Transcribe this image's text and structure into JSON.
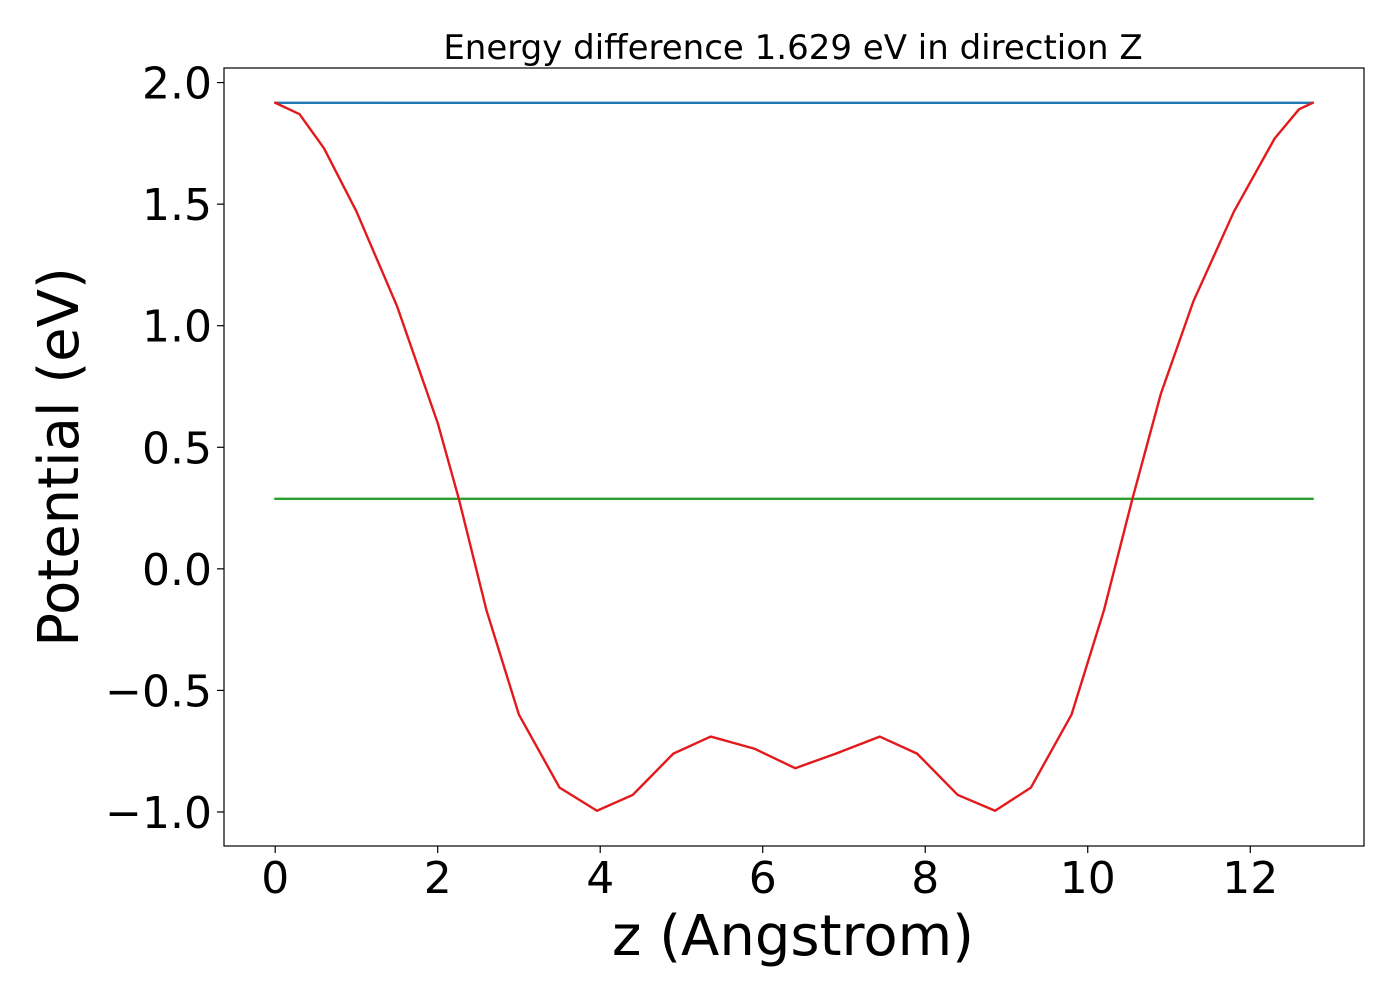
{
  "chart_data": {
    "type": "line",
    "title": "Energy difference 1.629 eV in direction Z",
    "xlabel": "z (Angstrom)",
    "ylabel": "Potential (eV)",
    "xlim": [
      -0.63,
      13.4
    ],
    "ylim": [
      -1.14,
      2.06
    ],
    "xticks": [
      0,
      2,
      4,
      6,
      8,
      10,
      12
    ],
    "xtick_labels": [
      "0",
      "2",
      "4",
      "6",
      "8",
      "10",
      "12"
    ],
    "yticks": [
      -1.0,
      -0.5,
      0.0,
      0.5,
      1.0,
      1.5,
      2.0
    ],
    "ytick_labels": [
      "−1.0",
      "−0.5",
      "0.0",
      "0.5",
      "1.0",
      "1.5",
      "2.0"
    ],
    "grid": false,
    "series": [
      {
        "color": "#1f77b4",
        "x": [
          0,
          12.77
        ],
        "y": [
          1.917,
          1.917
        ]
      },
      {
        "color": "#2ca02c",
        "x": [
          0,
          12.77
        ],
        "y": [
          0.288,
          0.288
        ]
      },
      {
        "color": "#e31a1c",
        "x": [
          0,
          0.3,
          0.6,
          1.0,
          1.5,
          2.0,
          2.26,
          2.6,
          3.0,
          3.5,
          3.96,
          4.4,
          4.9,
          5.36,
          5.9,
          6.4,
          6.9,
          7.44,
          7.9,
          8.4,
          8.86,
          9.3,
          9.8,
          10.2,
          10.55,
          10.9,
          11.3,
          11.8,
          12.3,
          12.6,
          12.77
        ],
        "y": [
          1.917,
          1.87,
          1.73,
          1.47,
          1.08,
          0.6,
          0.288,
          -0.17,
          -0.6,
          -0.9,
          -0.995,
          -0.93,
          -0.76,
          -0.69,
          -0.74,
          -0.82,
          -0.76,
          -0.69,
          -0.76,
          -0.93,
          -0.995,
          -0.9,
          -0.6,
          -0.17,
          0.288,
          0.72,
          1.1,
          1.47,
          1.77,
          1.89,
          1.917
        ]
      }
    ]
  }
}
